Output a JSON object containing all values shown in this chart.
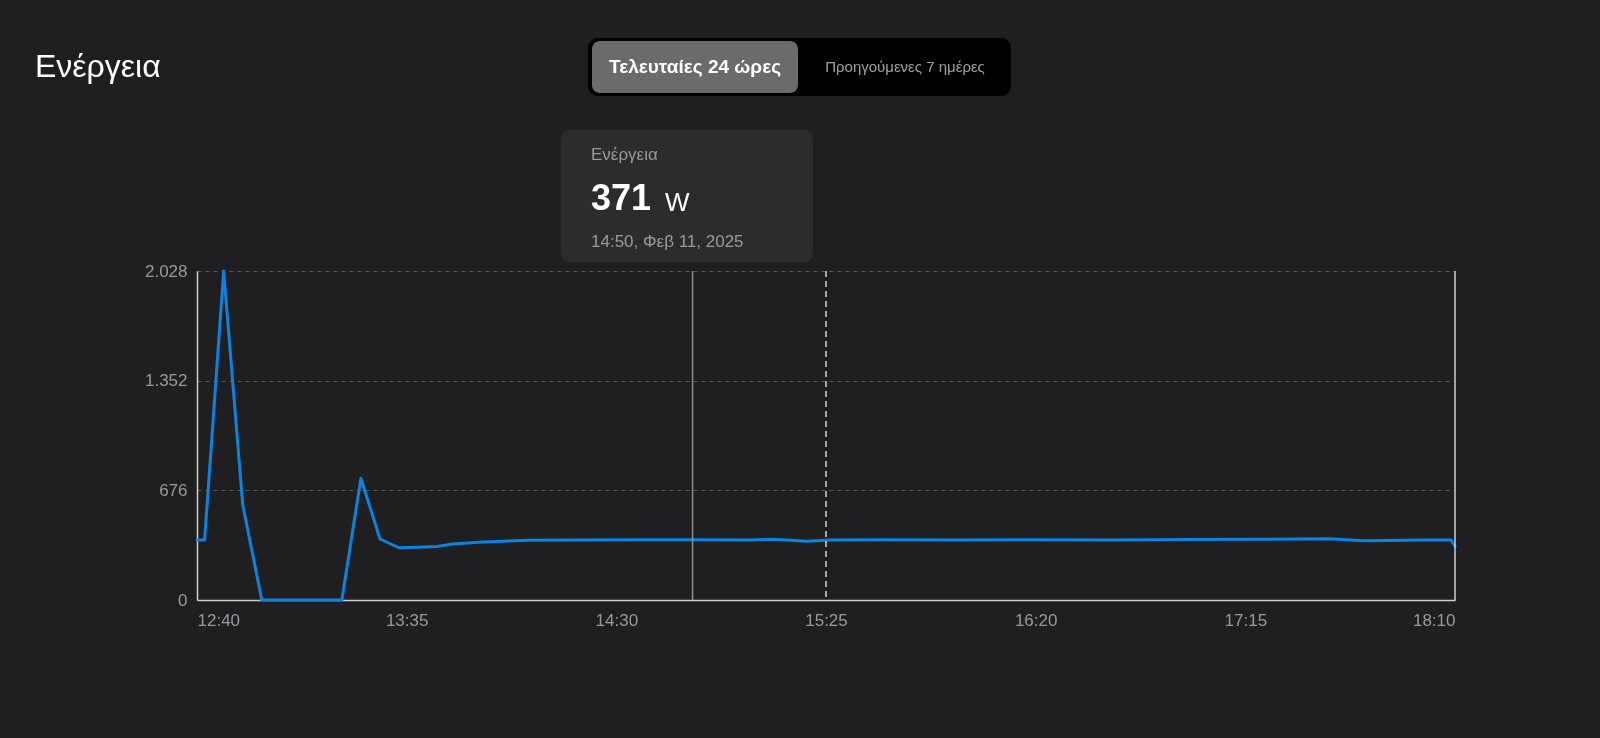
{
  "chart_data": {
    "type": "line",
    "title": "Ενέργεια",
    "x": [
      12.6667,
      12.7,
      12.7833,
      12.8667,
      12.95,
      13.3,
      13.3833,
      13.4667,
      13.55,
      13.6333,
      13.7167,
      13.7833,
      13.9167,
      14.1167,
      14.3333,
      14.5833,
      14.8333,
      15.0833,
      15.1833,
      15.3333,
      15.4333,
      15.6667,
      16,
      16.3333,
      16.6667,
      17,
      17.3333,
      17.6167,
      17.7667,
      18.0333,
      18.15,
      18.1667
    ],
    "series": [
      {
        "color": "#0a84e0",
        "values": [
          370,
          370,
          2028,
          585,
          0,
          0,
          750,
          376,
          322,
          325,
          330,
          345,
          358,
          368,
          370,
          372,
          371,
          370,
          375,
          362,
          370,
          371,
          370,
          372,
          370,
          373,
          374,
          377,
          365,
          370,
          370,
          330
        ]
      }
    ],
    "xlim": [
      12.6667,
      18.1667
    ],
    "xticks": [
      {
        "value": 12.6667,
        "label": "12:40"
      },
      {
        "value": 13.5833,
        "label": "13:35"
      },
      {
        "value": 14.5,
        "label": "14:30"
      },
      {
        "value": 15.4167,
        "label": "15:25"
      },
      {
        "value": 16.3333,
        "label": "16:20"
      },
      {
        "value": 17.25,
        "label": "17:15"
      },
      {
        "value": 18.1667,
        "label": "18:10"
      }
    ],
    "ylim": [
      0,
      2028
    ],
    "yticks": [
      0,
      676,
      {
        "value": 1352,
        "label": "1.352"
      },
      {
        "value": 2028,
        "label": "2.028"
      }
    ],
    "grid": "y",
    "marker": "none",
    "line_style": "solid",
    "ref_lines": [
      {
        "axis": "x",
        "value": 14.8333,
        "color": "#8e8e93",
        "line_style": "solid"
      },
      {
        "axis": "x",
        "value": 15.4167,
        "color": "#d8d8d8",
        "line_style": "dashed"
      }
    ],
    "annotations": [
      "Τελευταίες 24 ώρες",
      "Προηγούμενες 7 ημέρες",
      "Ενέργεια",
      "371 W",
      "14:50, Φεβ 11, 2025"
    ]
  }
}
